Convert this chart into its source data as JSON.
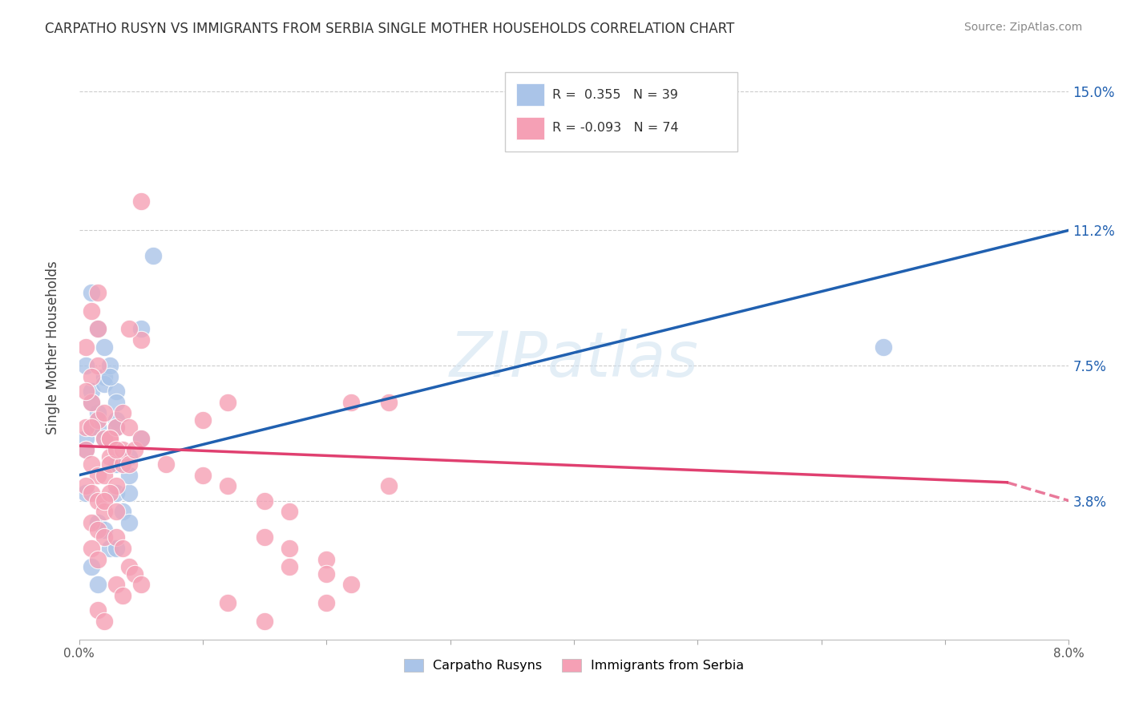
{
  "title": "CARPATHO RUSYN VS IMMIGRANTS FROM SERBIA SINGLE MOTHER HOUSEHOLDS CORRELATION CHART",
  "source": "Source: ZipAtlas.com",
  "ylabel": "Single Mother Households",
  "y_ticks": [
    "15.0%",
    "11.2%",
    "7.5%",
    "3.8%"
  ],
  "y_tick_vals": [
    0.15,
    0.112,
    0.075,
    0.038
  ],
  "x_range": [
    0.0,
    0.08
  ],
  "y_range": [
    0.0,
    0.16
  ],
  "legend_blue_r": "0.355",
  "legend_blue_n": "39",
  "legend_pink_r": "-0.093",
  "legend_pink_n": "74",
  "legend_blue_label": "Carpatho Rusyns",
  "legend_pink_label": "Immigrants from Serbia",
  "blue_color": "#aac4e8",
  "pink_color": "#f5a0b5",
  "blue_line_color": "#2060b0",
  "pink_line_color": "#e04070",
  "watermark": "ZIPatlas",
  "blue_line": [
    0.0,
    0.045,
    0.08,
    0.112
  ],
  "pink_line_solid": [
    0.0,
    0.053,
    0.075,
    0.043
  ],
  "pink_line_dash": [
    0.075,
    0.043,
    0.08,
    0.038
  ],
  "blue_points": [
    [
      0.0005,
      0.075
    ],
    [
      0.001,
      0.095
    ],
    [
      0.0015,
      0.085
    ],
    [
      0.001,
      0.068
    ],
    [
      0.002,
      0.072
    ],
    [
      0.002,
      0.08
    ],
    [
      0.0015,
      0.062
    ],
    [
      0.0005,
      0.055
    ],
    [
      0.001,
      0.058
    ],
    [
      0.0005,
      0.052
    ],
    [
      0.001,
      0.065
    ],
    [
      0.0015,
      0.058
    ],
    [
      0.002,
      0.07
    ],
    [
      0.0025,
      0.075
    ],
    [
      0.002,
      0.055
    ],
    [
      0.003,
      0.068
    ],
    [
      0.003,
      0.06
    ],
    [
      0.003,
      0.048
    ],
    [
      0.0025,
      0.072
    ],
    [
      0.003,
      0.065
    ],
    [
      0.003,
      0.04
    ],
    [
      0.0035,
      0.035
    ],
    [
      0.004,
      0.04
    ],
    [
      0.0015,
      0.032
    ],
    [
      0.002,
      0.03
    ],
    [
      0.0025,
      0.025
    ],
    [
      0.001,
      0.02
    ],
    [
      0.0015,
      0.015
    ],
    [
      0.0005,
      0.04
    ],
    [
      0.003,
      0.058
    ],
    [
      0.003,
      0.048
    ],
    [
      0.004,
      0.045
    ],
    [
      0.004,
      0.05
    ],
    [
      0.005,
      0.055
    ],
    [
      0.006,
      0.105
    ],
    [
      0.005,
      0.085
    ],
    [
      0.065,
      0.08
    ],
    [
      0.003,
      0.025
    ],
    [
      0.004,
      0.032
    ]
  ],
  "pink_points": [
    [
      0.0005,
      0.058
    ],
    [
      0.001,
      0.065
    ],
    [
      0.0015,
      0.075
    ],
    [
      0.0005,
      0.08
    ],
    [
      0.001,
      0.072
    ],
    [
      0.0005,
      0.068
    ],
    [
      0.0015,
      0.06
    ],
    [
      0.001,
      0.058
    ],
    [
      0.0005,
      0.052
    ],
    [
      0.001,
      0.048
    ],
    [
      0.0015,
      0.045
    ],
    [
      0.0005,
      0.042
    ],
    [
      0.001,
      0.04
    ],
    [
      0.0015,
      0.038
    ],
    [
      0.002,
      0.035
    ],
    [
      0.001,
      0.032
    ],
    [
      0.0015,
      0.03
    ],
    [
      0.002,
      0.028
    ],
    [
      0.001,
      0.025
    ],
    [
      0.0015,
      0.022
    ],
    [
      0.002,
      0.055
    ],
    [
      0.0025,
      0.05
    ],
    [
      0.002,
      0.045
    ],
    [
      0.0025,
      0.048
    ],
    [
      0.003,
      0.042
    ],
    [
      0.0025,
      0.04
    ],
    [
      0.002,
      0.038
    ],
    [
      0.003,
      0.035
    ],
    [
      0.0035,
      0.048
    ],
    [
      0.0025,
      0.055
    ],
    [
      0.003,
      0.058
    ],
    [
      0.0035,
      0.062
    ],
    [
      0.004,
      0.058
    ],
    [
      0.0035,
      0.052
    ],
    [
      0.004,
      0.048
    ],
    [
      0.0045,
      0.052
    ],
    [
      0.005,
      0.055
    ],
    [
      0.003,
      0.028
    ],
    [
      0.0035,
      0.025
    ],
    [
      0.004,
      0.02
    ],
    [
      0.0045,
      0.018
    ],
    [
      0.005,
      0.015
    ],
    [
      0.007,
      0.048
    ],
    [
      0.01,
      0.06
    ],
    [
      0.012,
      0.065
    ],
    [
      0.01,
      0.045
    ],
    [
      0.012,
      0.042
    ],
    [
      0.015,
      0.038
    ],
    [
      0.017,
      0.035
    ],
    [
      0.015,
      0.028
    ],
    [
      0.017,
      0.025
    ],
    [
      0.02,
      0.022
    ],
    [
      0.017,
      0.02
    ],
    [
      0.02,
      0.018
    ],
    [
      0.022,
      0.015
    ],
    [
      0.02,
      0.01
    ],
    [
      0.012,
      0.01
    ],
    [
      0.015,
      0.005
    ],
    [
      0.005,
      0.12
    ],
    [
      0.005,
      0.082
    ],
    [
      0.004,
      0.085
    ],
    [
      0.0015,
      0.085
    ],
    [
      0.001,
      0.09
    ],
    [
      0.0015,
      0.095
    ],
    [
      0.022,
      0.065
    ],
    [
      0.025,
      0.065
    ],
    [
      0.003,
      0.015
    ],
    [
      0.0035,
      0.012
    ],
    [
      0.0015,
      0.008
    ],
    [
      0.002,
      0.005
    ],
    [
      0.0025,
      0.055
    ],
    [
      0.003,
      0.052
    ],
    [
      0.025,
      0.042
    ],
    [
      0.002,
      0.062
    ]
  ]
}
